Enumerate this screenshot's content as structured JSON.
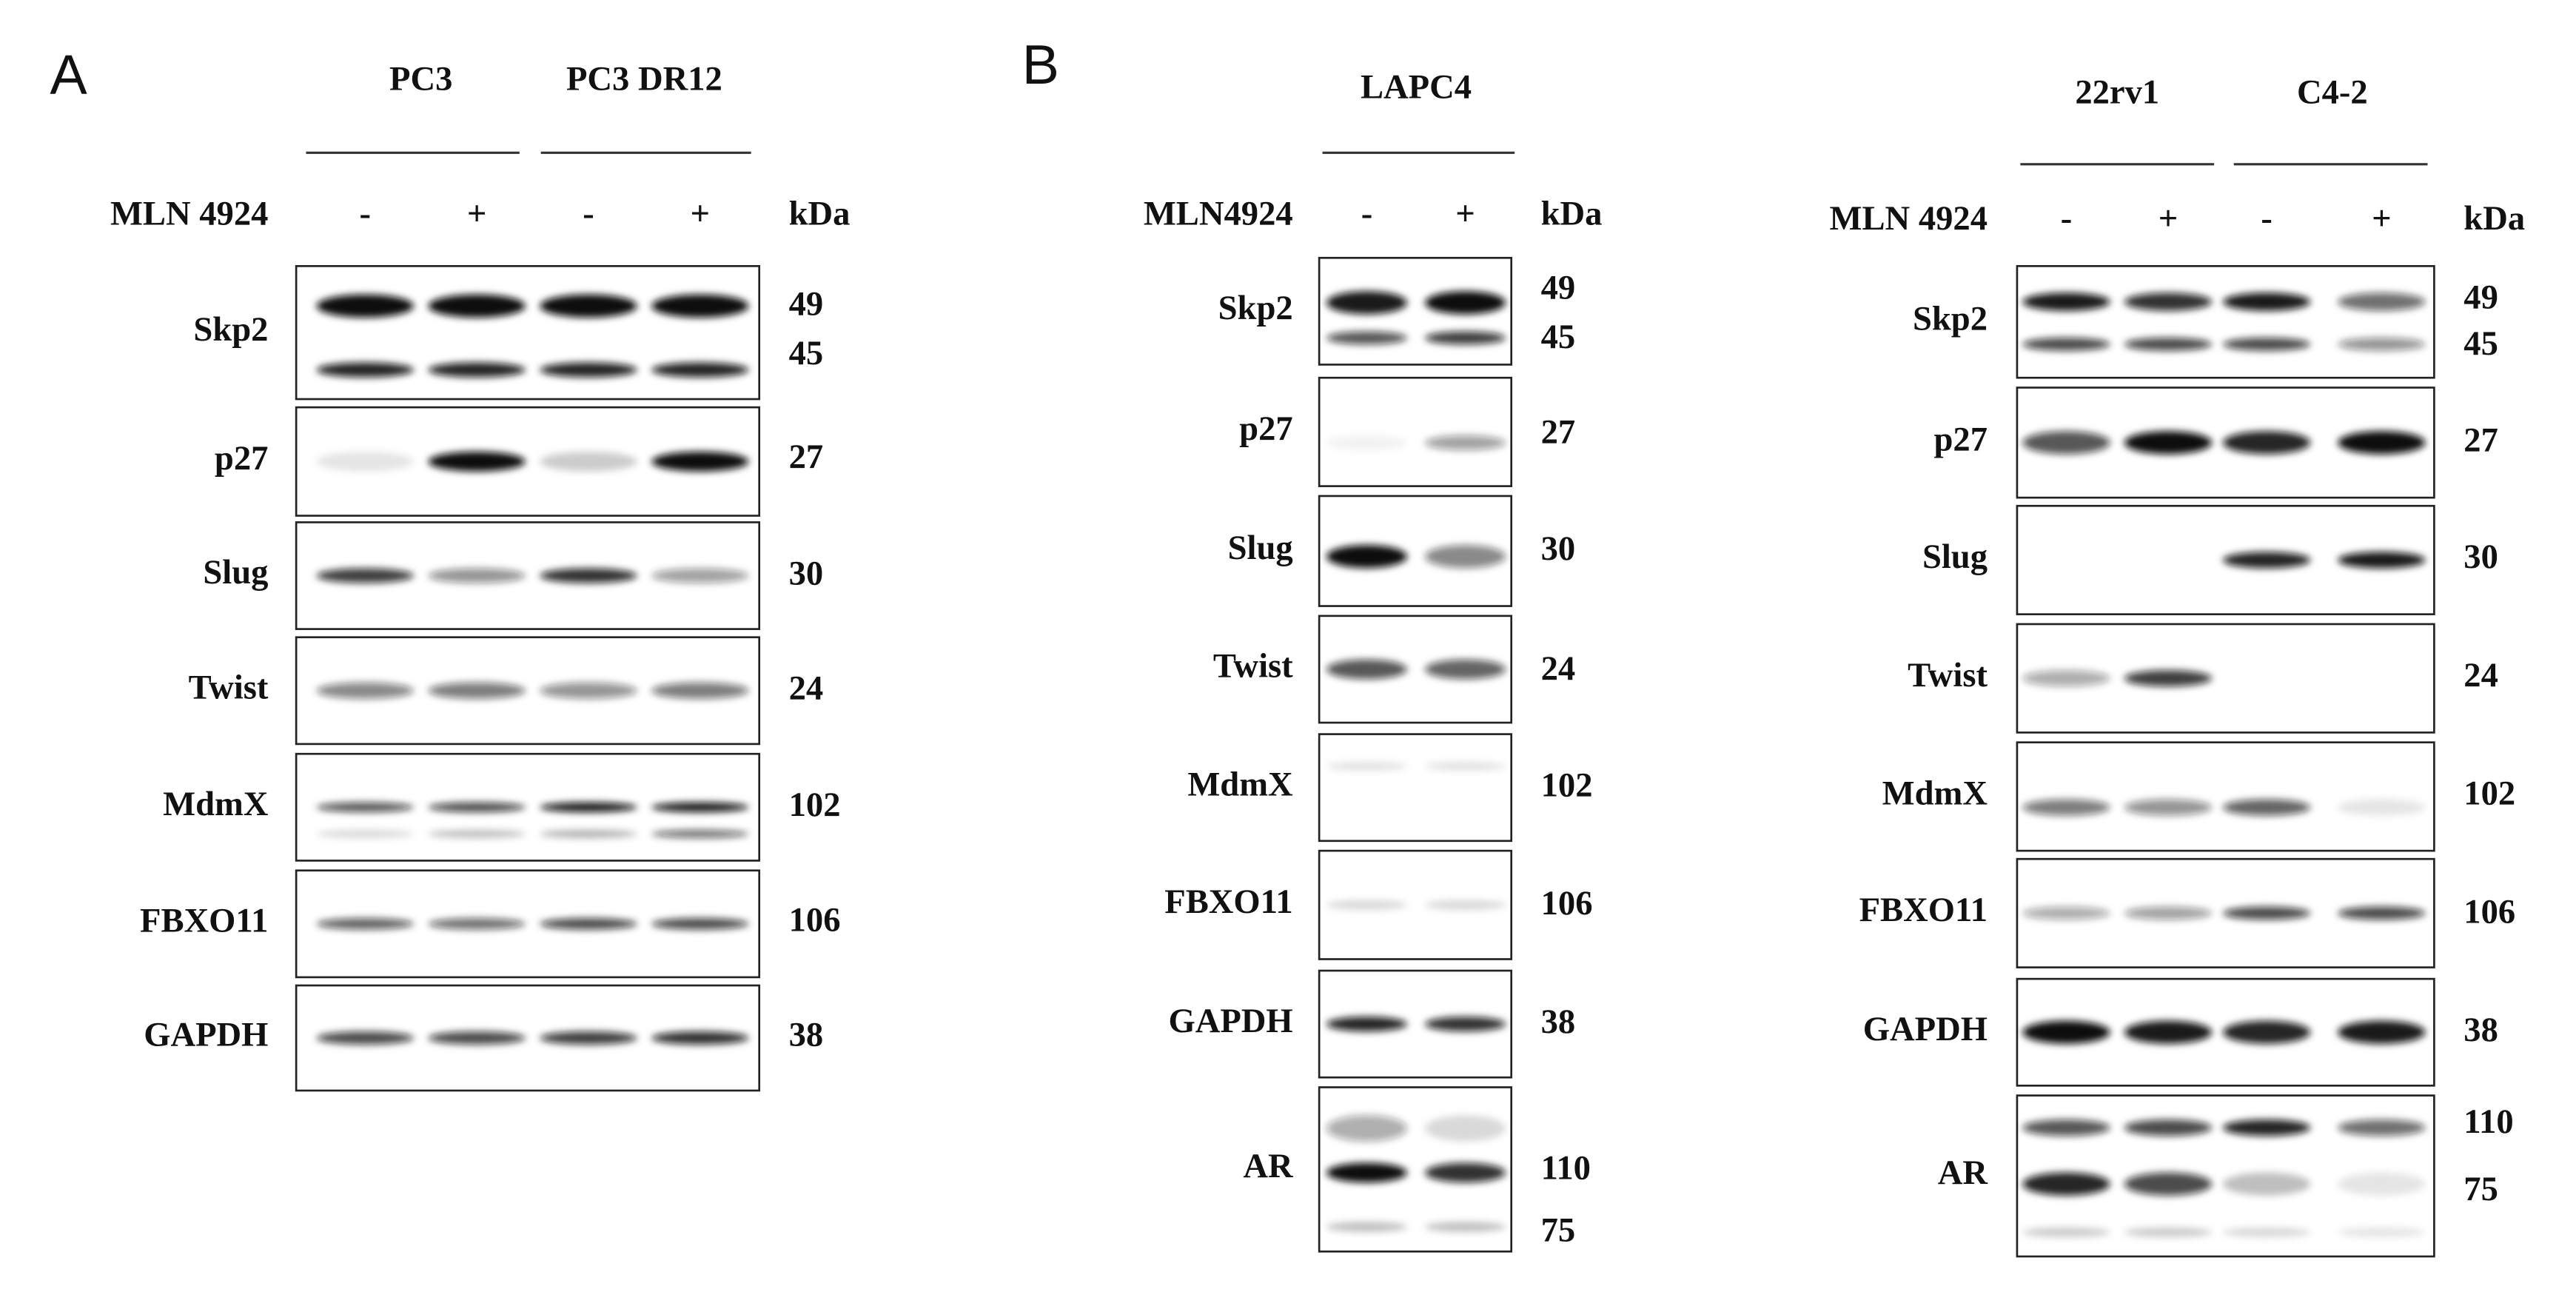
{
  "panel_a": {
    "letter": "A",
    "groups": [
      "PC3",
      "PC3 DR12"
    ],
    "treatment": "MLN 4924",
    "signs": [
      "-",
      "+",
      "-",
      "+"
    ],
    "unit": "kDa",
    "blots": [
      {
        "protein": "Skp2",
        "kda": [
          49,
          45
        ]
      },
      {
        "protein": "p27",
        "kda": [
          27
        ]
      },
      {
        "protein": "Slug",
        "kda": [
          30
        ]
      },
      {
        "protein": "Twist",
        "kda": [
          24
        ]
      },
      {
        "protein": "MdmX",
        "kda": [
          102
        ]
      },
      {
        "protein": "FBXO11",
        "kda": [
          106
        ]
      },
      {
        "protein": "GAPDH",
        "kda": [
          38
        ]
      }
    ]
  },
  "panel_b_left": {
    "letter": "B",
    "groups": [
      "LAPC4"
    ],
    "treatment": "MLN4924",
    "signs": [
      "-",
      "+"
    ],
    "unit": "kDa",
    "blots": [
      {
        "protein": "Skp2",
        "kda": [
          49,
          45
        ]
      },
      {
        "protein": "p27",
        "kda": [
          27
        ]
      },
      {
        "protein": "Slug",
        "kda": [
          30
        ]
      },
      {
        "protein": "Twist",
        "kda": [
          24
        ]
      },
      {
        "protein": "MdmX",
        "kda": [
          102
        ]
      },
      {
        "protein": "FBXO11",
        "kda": [
          106
        ]
      },
      {
        "protein": "GAPDH",
        "kda": [
          38
        ]
      },
      {
        "protein": "AR",
        "kda": [
          110,
          75
        ]
      }
    ]
  },
  "panel_b_right": {
    "groups": [
      "22rv1",
      "C4-2"
    ],
    "treatment": "MLN 4924",
    "signs": [
      "-",
      "+",
      "-",
      "+"
    ],
    "unit": "kDa",
    "blots": [
      {
        "protein": "Skp2",
        "kda": [
          49,
          45
        ]
      },
      {
        "protein": "p27",
        "kda": [
          27
        ]
      },
      {
        "protein": "Slug",
        "kda": [
          30
        ]
      },
      {
        "protein": "Twist",
        "kda": [
          24
        ]
      },
      {
        "protein": "MdmX",
        "kda": [
          102
        ]
      },
      {
        "protein": "FBXO11",
        "kda": [
          106
        ]
      },
      {
        "protein": "GAPDH",
        "kda": [
          38
        ]
      },
      {
        "protein": "AR",
        "kda": [
          110,
          75
        ]
      }
    ]
  }
}
